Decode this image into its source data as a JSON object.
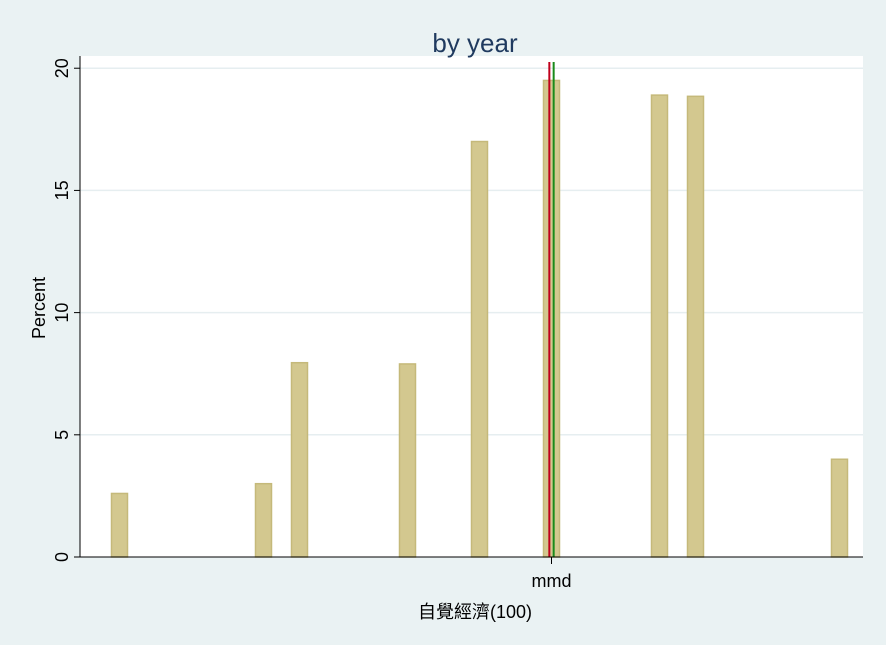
{
  "chart_data": {
    "type": "bar",
    "title": "by year",
    "xlabel": "自覺經濟(100)",
    "ylabel": "Percent",
    "ylim": [
      0,
      20.5
    ],
    "yticks": [
      0,
      5,
      10,
      15,
      20
    ],
    "xlim": [
      0,
      100
    ],
    "x": [
      5,
      25,
      30,
      45,
      55,
      65,
      80,
      85,
      105
    ],
    "values": [
      2.6,
      3.0,
      7.95,
      7.9,
      17.0,
      19.5,
      18.9,
      18.85,
      4.0
    ],
    "xtick_label": "mmd",
    "xtick_at": 65,
    "reference_lines": [
      {
        "x": 64.7,
        "color": "#c0001b"
      },
      {
        "x": 65.3,
        "color": "#1a8a1a"
      }
    ],
    "bar_color": "#d3c88f",
    "bar_edge": "#c5b97a",
    "grid": true
  }
}
